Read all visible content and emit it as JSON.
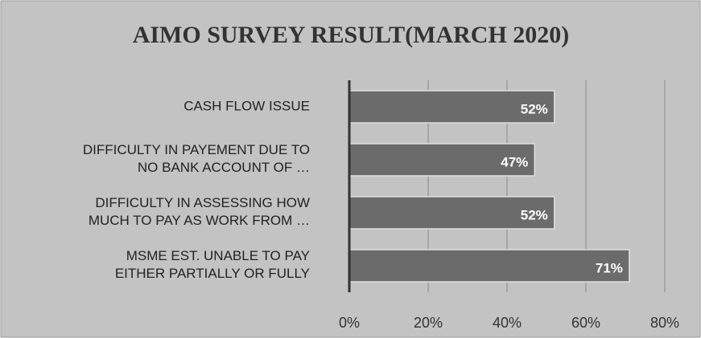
{
  "chart_data": {
    "type": "bar",
    "orientation": "horizontal",
    "title": "AIMO SURVEY RESULT(MARCH 2020)",
    "categories": [
      "CASH FLOW ISSUE",
      "DIFFICULTY IN PAYEMENT DUE TO\nNO BANK ACCOUNT OF      …",
      "DIFFICULTY IN ASSESSING HOW\nMUCH TO PAY AS WORK FROM      …",
      "MSME EST. UNABLE TO PAY\nEITHER PARTIALLY OR FULLY"
    ],
    "values": [
      52,
      47,
      52,
      71
    ],
    "value_labels": [
      "52%",
      "47%",
      "52%",
      "71%"
    ],
    "color": "#6b6b6b",
    "xlim": [
      0,
      80
    ],
    "xticks": [
      {
        "value": 0,
        "label": "0%"
      },
      {
        "value": 20,
        "label": "20%"
      },
      {
        "value": 40,
        "label": "40%"
      },
      {
        "value": 60,
        "label": "60%"
      },
      {
        "value": 80,
        "label": "80%"
      }
    ],
    "grid": true
  }
}
